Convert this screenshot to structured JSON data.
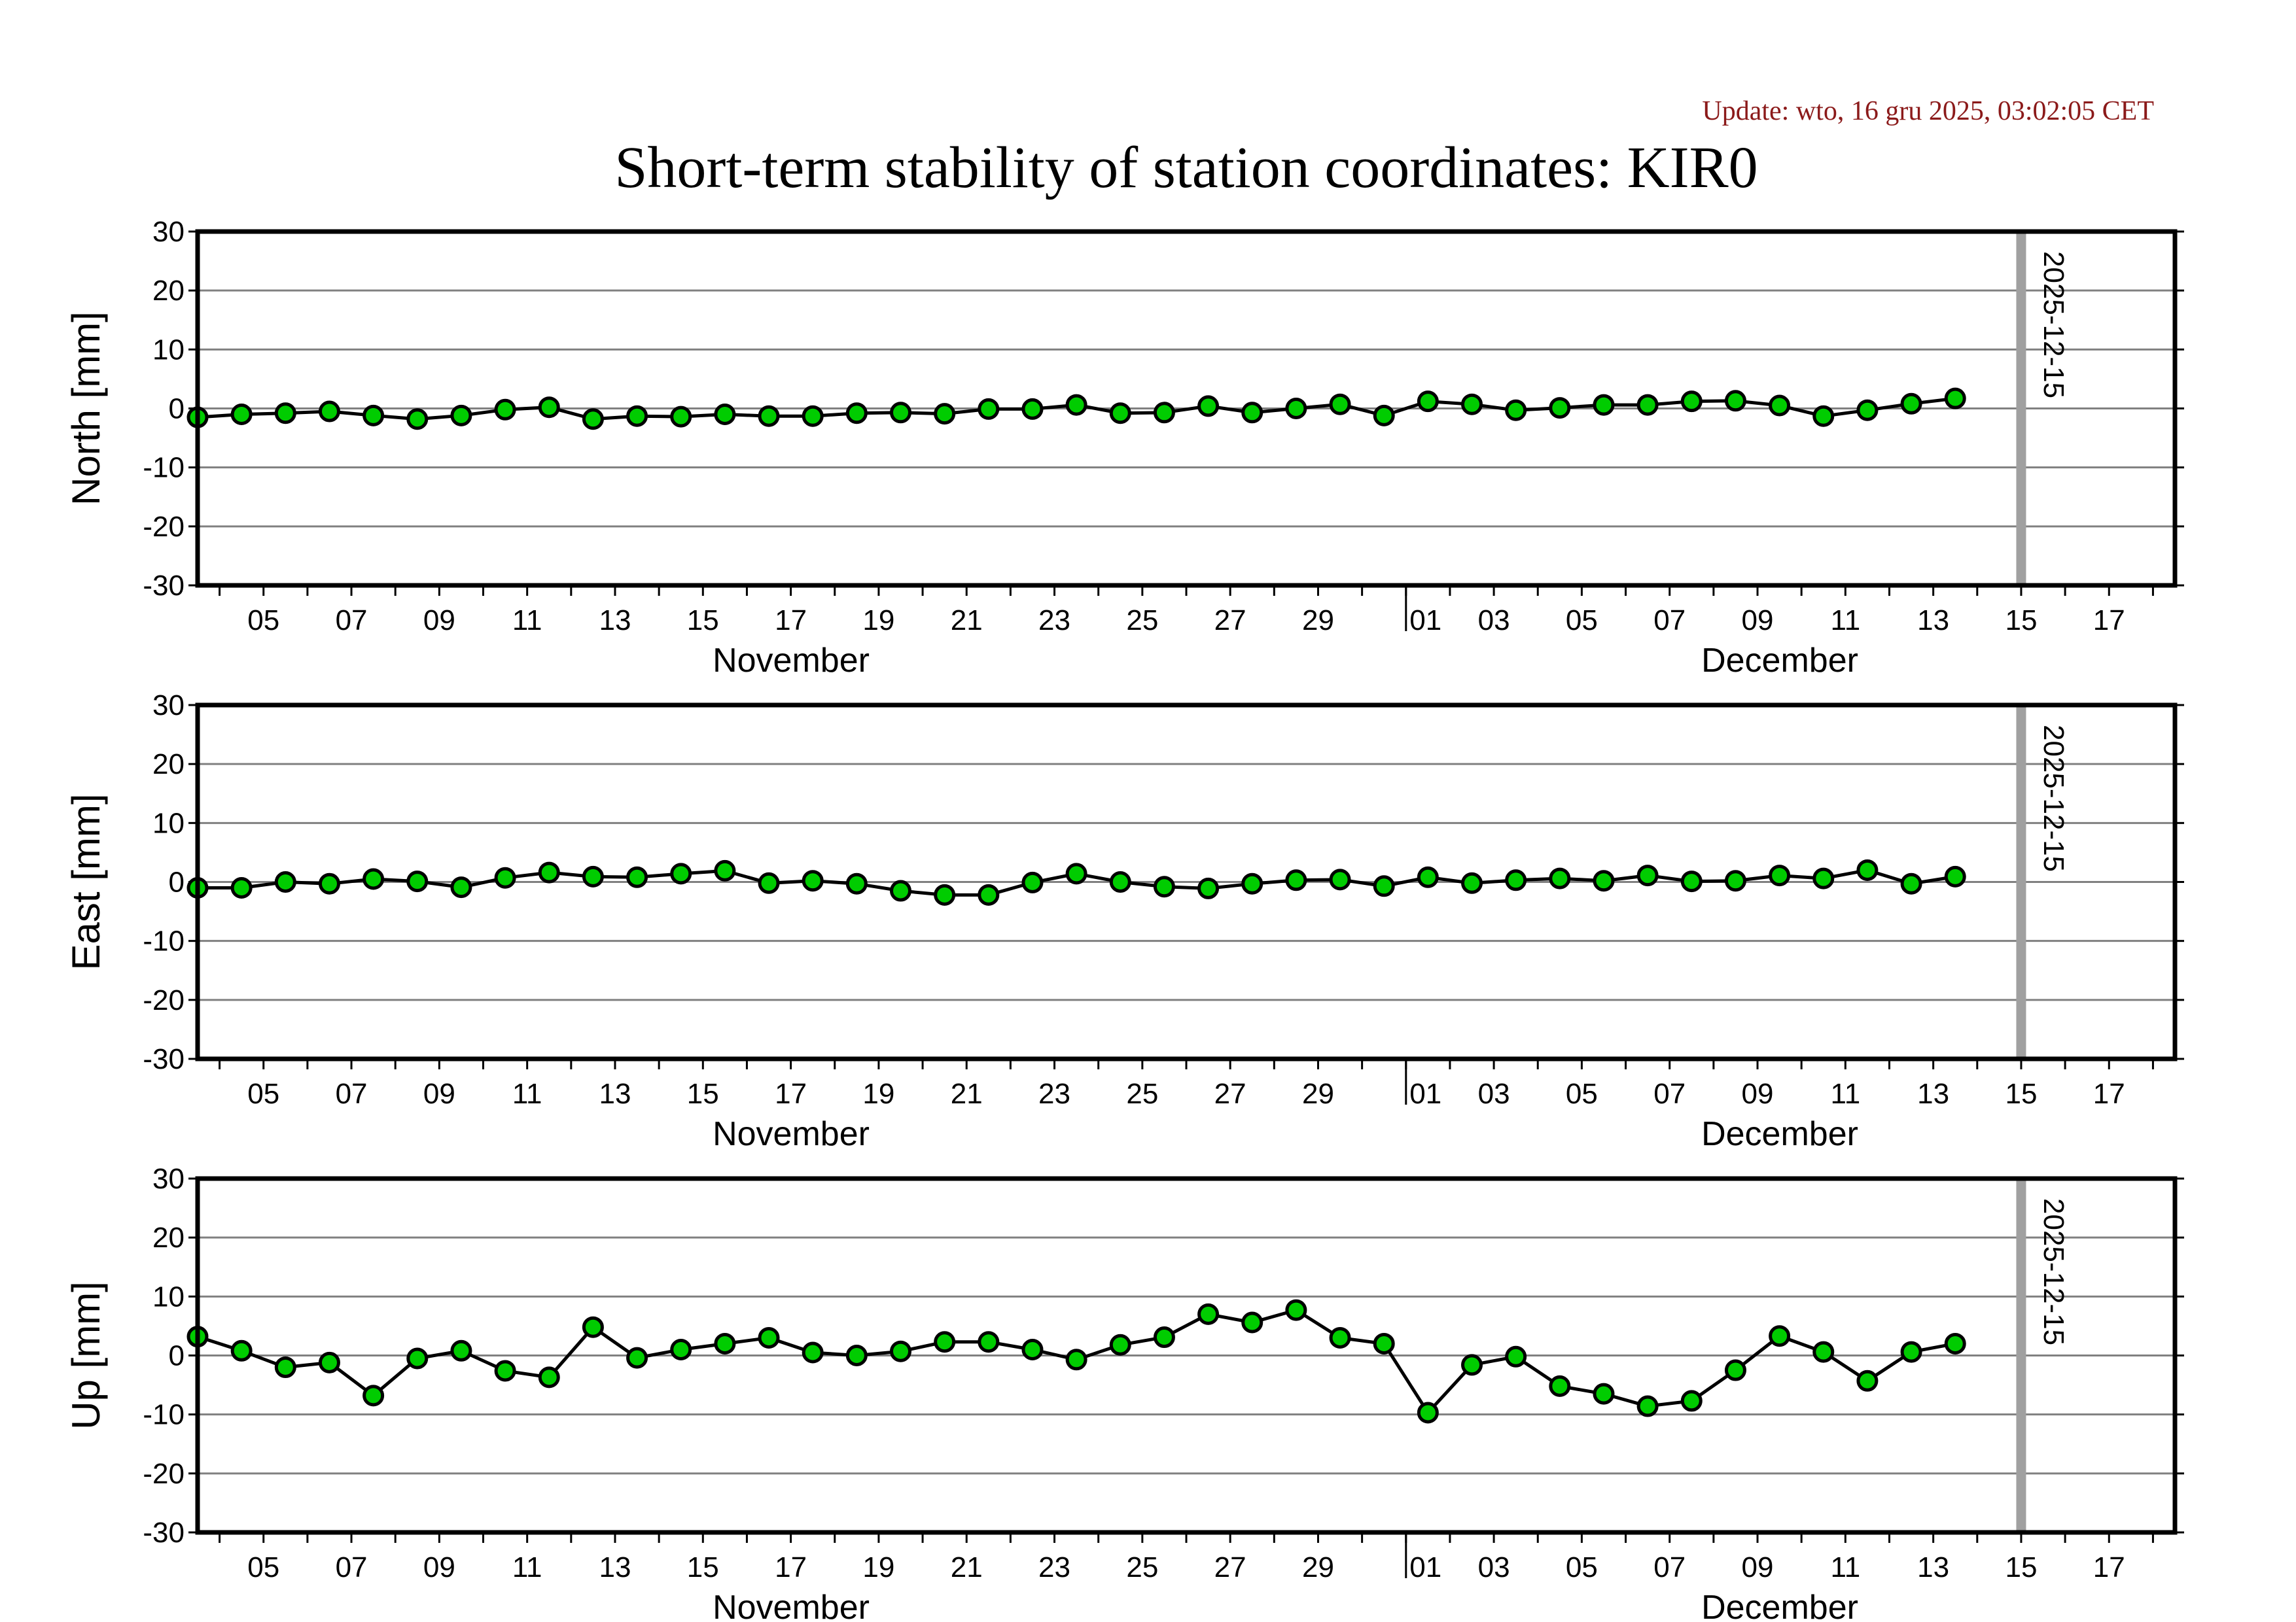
{
  "update_text": "Update: wto, 16 gru 2025, 03:02:05 CET",
  "title": "Short-term stability of station coordinates: KIR0",
  "colors": {
    "marker": "#00cc00",
    "line": "#000000",
    "grid": "#808080",
    "marker_line": "#a0a0a0",
    "update": "#8b1a1a"
  },
  "chart_data": [
    {
      "type": "line",
      "ylabel": "North [mm]",
      "ylim": [
        -30,
        30
      ],
      "yticks": [
        30,
        20,
        10,
        0,
        -10,
        -20,
        -30
      ],
      "xlim": [
        "2025-11-03T12:00",
        "2025-12-18T12:00"
      ],
      "xtick_labels": [
        "05",
        "07",
        "09",
        "11",
        "13",
        "15",
        "17",
        "19",
        "21",
        "23",
        "25",
        "27",
        "29",
        "01",
        "03",
        "05",
        "07",
        "09",
        "11",
        "13",
        "15",
        "17"
      ],
      "month_labels": [
        "November",
        "December"
      ],
      "marker_date_label": "2025-12-15",
      "values": [
        -1.5,
        -1,
        -0.8,
        -0.5,
        -1.2,
        -1.8,
        -1.2,
        -0.2,
        0.2,
        -1.8,
        -1.3,
        -1.4,
        -1,
        -1.3,
        -1.3,
        -0.8,
        -0.7,
        -0.9,
        -0.1,
        -0.1,
        0.6,
        -0.8,
        -0.7,
        0.4,
        -0.7,
        0,
        0.7,
        -1.2,
        1.2,
        0.7,
        -0.3,
        0.1,
        0.6,
        0.6,
        1.2,
        1.3,
        0.5,
        -1.3,
        -0.3,
        0.8,
        1.7
      ]
    },
    {
      "type": "line",
      "ylabel": "East [mm]",
      "ylim": [
        -30,
        30
      ],
      "yticks": [
        30,
        20,
        10,
        0,
        -10,
        -20,
        -30
      ],
      "xlim": [
        "2025-11-03T12:00",
        "2025-12-18T12:00"
      ],
      "xtick_labels": [
        "05",
        "07",
        "09",
        "11",
        "13",
        "15",
        "17",
        "19",
        "21",
        "23",
        "25",
        "27",
        "29",
        "01",
        "03",
        "05",
        "07",
        "09",
        "11",
        "13",
        "15",
        "17"
      ],
      "month_labels": [
        "November",
        "December"
      ],
      "marker_date_label": "2025-12-15",
      "values": [
        -1,
        -1,
        0,
        -0.3,
        0.5,
        0.1,
        -0.9,
        0.7,
        1.6,
        0.9,
        0.8,
        1.4,
        1.9,
        -0.2,
        0.2,
        -0.3,
        -1.5,
        -2.2,
        -2.2,
        -0.1,
        1.4,
        0,
        -0.8,
        -1.1,
        -0.3,
        0.3,
        0.4,
        -0.7,
        0.8,
        -0.2,
        0.3,
        0.6,
        0.2,
        1.1,
        0.1,
        0.2,
        1.1,
        0.6,
        2,
        -0.3,
        0.9
      ]
    },
    {
      "type": "line",
      "ylabel": "Up [mm]",
      "ylim": [
        -30,
        30
      ],
      "yticks": [
        30,
        20,
        10,
        0,
        -10,
        -20,
        -30
      ],
      "xlim": [
        "2025-11-03T12:00",
        "2025-12-18T12:00"
      ],
      "xtick_labels": [
        "05",
        "07",
        "09",
        "11",
        "13",
        "15",
        "17",
        "19",
        "21",
        "23",
        "25",
        "27",
        "29",
        "01",
        "03",
        "05",
        "07",
        "09",
        "11",
        "13",
        "15",
        "17"
      ],
      "month_labels": [
        "November",
        "December"
      ],
      "marker_date_label": "2025-12-15",
      "values": [
        3.2,
        0.8,
        -2,
        -1.2,
        -6.8,
        -0.5,
        0.8,
        -2.6,
        -3.7,
        4.8,
        -0.4,
        1,
        2,
        3,
        0.5,
        0,
        0.7,
        2.3,
        2.3,
        1,
        -0.7,
        1.8,
        3.1,
        7,
        5.6,
        7.7,
        3,
        2,
        -9.7,
        -1.6,
        -0.2,
        -5.2,
        -6.5,
        -8.6,
        -7.7,
        -2.5,
        3.3,
        0.6,
        -4.3,
        0.6,
        2
      ]
    }
  ]
}
